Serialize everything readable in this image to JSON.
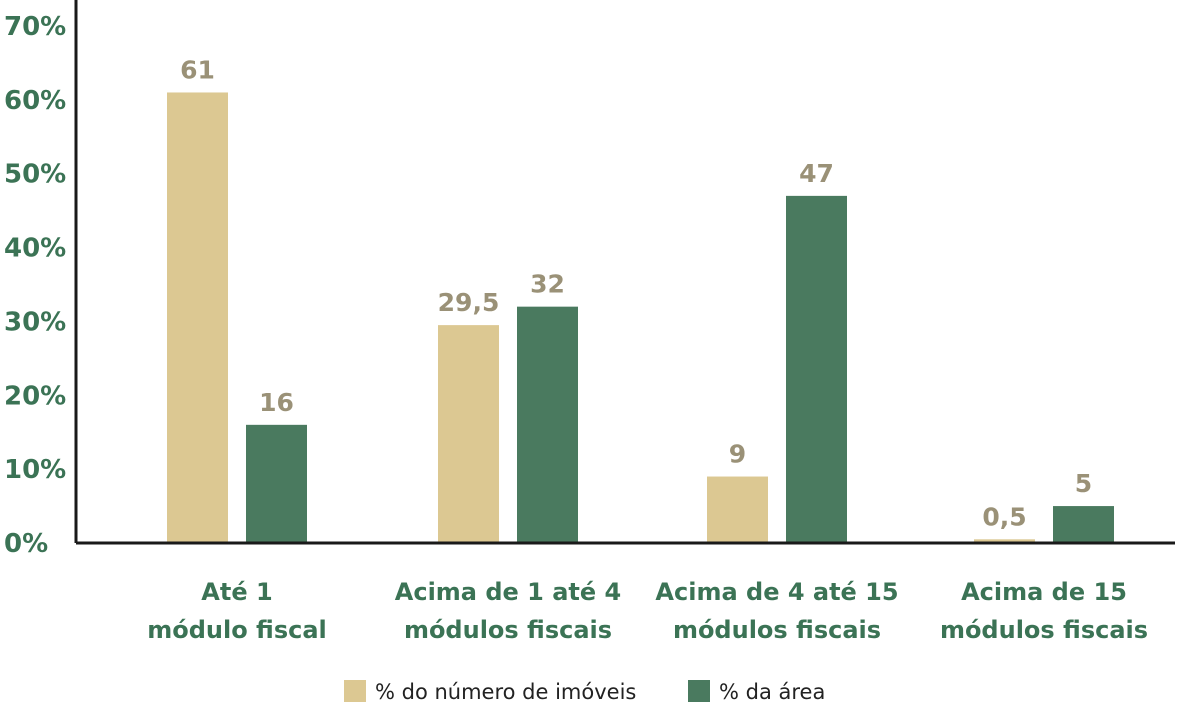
{
  "chart_data": {
    "type": "bar",
    "title": "",
    "xlabel": "",
    "ylabel": "",
    "ylim": [
      0,
      70
    ],
    "ytick_values": [
      0,
      10,
      20,
      30,
      40,
      50,
      60,
      70
    ],
    "ytick_labels": [
      "0%",
      "10%",
      "20%",
      "30%",
      "40%",
      "50%",
      "60%",
      "70%"
    ],
    "grid": false,
    "legend_position": "bottom",
    "categories": [
      [
        "Até 1",
        "módulo fiscal"
      ],
      [
        "Acima de 1 até 4",
        "módulos fiscais"
      ],
      [
        "Acima de 4 até 15",
        "módulos fiscais"
      ],
      [
        "Acima de 15",
        "módulos fiscais"
      ]
    ],
    "series": [
      {
        "name": "% do número de imóveis",
        "color": "#dcc892",
        "values": [
          61,
          29.5,
          9,
          0.5
        ],
        "labels": [
          "61",
          "29,5",
          "9",
          "0,5"
        ]
      },
      {
        "name": "% da área",
        "color": "#4a7a5f",
        "values": [
          16,
          32,
          47,
          5
        ],
        "labels": [
          "16",
          "32",
          "47",
          "5"
        ]
      }
    ]
  }
}
